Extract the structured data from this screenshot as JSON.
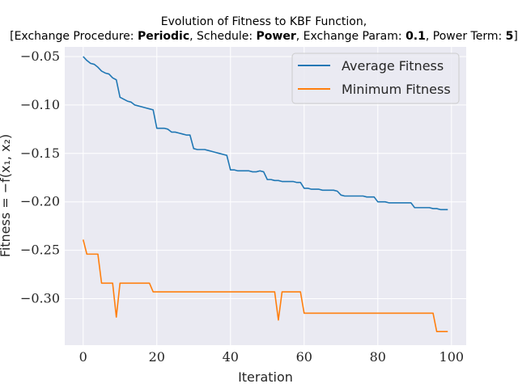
{
  "chart_data": {
    "type": "line",
    "title_line1": "Evolution of Fitness to KBF Function,",
    "title_line2": {
      "p1": "[Exchange Procedure: ",
      "b1": "Periodic",
      "p2": ", Schedule: ",
      "b2": "Power",
      "p3": ", Exchange Param: ",
      "b3": "0.1",
      "p4": ", Power Term: ",
      "b4": "5",
      "p5": "]"
    },
    "xlabel": "Iteration",
    "ylabel": "Fitness = −f(x₁, x₂)",
    "xlim": [
      -5,
      104
    ],
    "ylim": [
      -0.348,
      -0.04
    ],
    "xticks": [
      0,
      20,
      40,
      60,
      80,
      100
    ],
    "xtick_labels": [
      "0",
      "20",
      "40",
      "60",
      "80",
      "100"
    ],
    "yticks": [
      -0.05,
      -0.1,
      -0.15,
      -0.2,
      -0.25,
      -0.3
    ],
    "ytick_labels": [
      "−0.05",
      "−0.10",
      "−0.15",
      "−0.20",
      "−0.25",
      "−0.30"
    ],
    "grid": true,
    "legend_position": "top-right",
    "x": [
      0,
      1,
      2,
      3,
      4,
      5,
      6,
      7,
      8,
      9,
      10,
      11,
      12,
      13,
      14,
      15,
      16,
      17,
      18,
      19,
      20,
      21,
      22,
      23,
      24,
      25,
      26,
      27,
      28,
      29,
      30,
      31,
      32,
      33,
      34,
      35,
      36,
      37,
      38,
      39,
      40,
      41,
      42,
      43,
      44,
      45,
      46,
      47,
      48,
      49,
      50,
      51,
      52,
      53,
      54,
      55,
      56,
      57,
      58,
      59,
      60,
      61,
      62,
      63,
      64,
      65,
      66,
      67,
      68,
      69,
      70,
      71,
      72,
      73,
      74,
      75,
      76,
      77,
      78,
      79,
      80,
      81,
      82,
      83,
      84,
      85,
      86,
      87,
      88,
      89,
      90,
      91,
      92,
      93,
      94,
      95,
      96,
      97,
      98,
      99
    ],
    "series": [
      {
        "name": "Average Fitness",
        "color": "#1f77b4",
        "values": [
          -0.05,
          -0.054,
          -0.057,
          -0.058,
          -0.061,
          -0.065,
          -0.067,
          -0.068,
          -0.072,
          -0.074,
          -0.092,
          -0.094,
          -0.096,
          -0.097,
          -0.1,
          -0.101,
          -0.102,
          -0.103,
          -0.104,
          -0.105,
          -0.124,
          -0.124,
          -0.124,
          -0.125,
          -0.128,
          -0.128,
          -0.129,
          -0.13,
          -0.131,
          -0.131,
          -0.145,
          -0.146,
          -0.146,
          -0.146,
          -0.147,
          -0.148,
          -0.149,
          -0.15,
          -0.151,
          -0.152,
          -0.167,
          -0.167,
          -0.168,
          -0.168,
          -0.168,
          -0.168,
          -0.169,
          -0.169,
          -0.168,
          -0.169,
          -0.177,
          -0.177,
          -0.178,
          -0.178,
          -0.179,
          -0.179,
          -0.179,
          -0.179,
          -0.18,
          -0.18,
          -0.186,
          -0.186,
          -0.187,
          -0.187,
          -0.187,
          -0.188,
          -0.188,
          -0.188,
          -0.188,
          -0.189,
          -0.193,
          -0.194,
          -0.194,
          -0.194,
          -0.194,
          -0.194,
          -0.194,
          -0.195,
          -0.195,
          -0.195,
          -0.2,
          -0.2,
          -0.2,
          -0.201,
          -0.201,
          -0.201,
          -0.201,
          -0.201,
          -0.201,
          -0.201,
          -0.206,
          -0.206,
          -0.206,
          -0.206,
          -0.206,
          -0.207,
          -0.207,
          -0.208,
          -0.208,
          -0.208
        ]
      },
      {
        "name": "Minimum Fitness",
        "color": "#ff7f0e",
        "values": [
          -0.239,
          -0.254,
          -0.254,
          -0.254,
          -0.254,
          -0.284,
          -0.284,
          -0.284,
          -0.284,
          -0.319,
          -0.284,
          -0.284,
          -0.284,
          -0.284,
          -0.284,
          -0.284,
          -0.284,
          -0.284,
          -0.284,
          -0.293,
          -0.293,
          -0.293,
          -0.293,
          -0.293,
          -0.293,
          -0.293,
          -0.293,
          -0.293,
          -0.293,
          -0.293,
          -0.293,
          -0.293,
          -0.293,
          -0.293,
          -0.293,
          -0.293,
          -0.293,
          -0.293,
          -0.293,
          -0.293,
          -0.293,
          -0.293,
          -0.293,
          -0.293,
          -0.293,
          -0.293,
          -0.293,
          -0.293,
          -0.293,
          -0.293,
          -0.293,
          -0.293,
          -0.293,
          -0.322,
          -0.293,
          -0.293,
          -0.293,
          -0.293,
          -0.293,
          -0.293,
          -0.315,
          -0.315,
          -0.315,
          -0.315,
          -0.315,
          -0.315,
          -0.315,
          -0.315,
          -0.315,
          -0.315,
          -0.315,
          -0.315,
          -0.315,
          -0.315,
          -0.315,
          -0.315,
          -0.315,
          -0.315,
          -0.315,
          -0.315,
          -0.315,
          -0.315,
          -0.315,
          -0.315,
          -0.315,
          -0.315,
          -0.315,
          -0.315,
          -0.315,
          -0.315,
          -0.315,
          -0.315,
          -0.315,
          -0.315,
          -0.315,
          -0.315,
          -0.334,
          -0.334,
          -0.334,
          -0.334
        ]
      }
    ]
  }
}
